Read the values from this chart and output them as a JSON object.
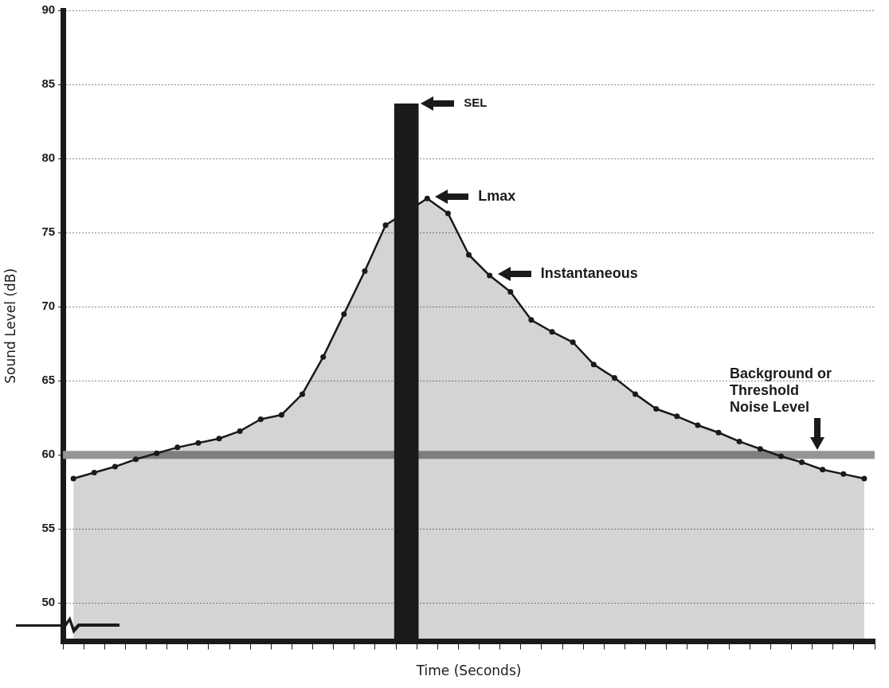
{
  "chart_data": {
    "type": "area",
    "xlabel": "Time (Seconds)",
    "ylabel": "Sound Level (dB)",
    "categories": [
      null,
      null,
      null,
      null,
      null,
      null,
      null,
      null,
      null,
      null,
      null,
      null,
      null,
      null,
      null,
      null,
      null,
      null,
      null,
      null,
      null,
      null,
      null,
      null,
      null,
      null,
      null,
      null,
      null,
      null,
      null,
      null,
      null,
      null,
      null,
      null,
      null,
      null,
      null
    ],
    "ylim": [
      47.4,
      90
    ],
    "yticks": [
      50,
      55,
      60,
      65,
      70,
      75,
      80,
      85,
      90
    ],
    "tick_labels": "y",
    "grid": "y",
    "legend": false,
    "marker": "circle",
    "line_style": "solid",
    "series": [
      {
        "color": "#1a1a1a",
        "values": [
          58.4,
          58.8,
          59.2,
          59.7,
          60.1,
          60.5,
          60.8,
          61.1,
          61.6,
          62.4,
          62.7,
          64.1,
          66.6,
          69.5,
          72.4,
          75.5,
          null,
          77.3,
          76.3,
          73.5,
          72.1,
          71.0,
          69.1,
          68.3,
          67.6,
          66.1,
          65.2,
          64.1,
          63.1,
          62.6,
          62.0,
          61.5,
          60.9,
          60.4,
          59.9,
          59.5,
          59.0,
          58.7,
          58.4
        ]
      },
      {
        "type": "bar",
        "color": "#1a1a1a",
        "values": [
          null,
          null,
          null,
          null,
          null,
          null,
          null,
          null,
          null,
          null,
          null,
          null,
          null,
          null,
          null,
          null,
          83.7,
          null,
          null,
          null,
          null,
          null,
          null,
          null,
          null,
          null,
          null,
          null,
          null,
          null,
          null,
          null,
          null,
          null,
          null,
          null,
          null,
          null,
          null
        ]
      }
    ],
    "ref_lines": [
      {
        "axis": "y",
        "value": 60,
        "label": "Background or\nThreshold\nNoise Level",
        "color": "#959595"
      }
    ],
    "annotations": [
      "SEL",
      "Lmax",
      "Instantaneous"
    ]
  }
}
